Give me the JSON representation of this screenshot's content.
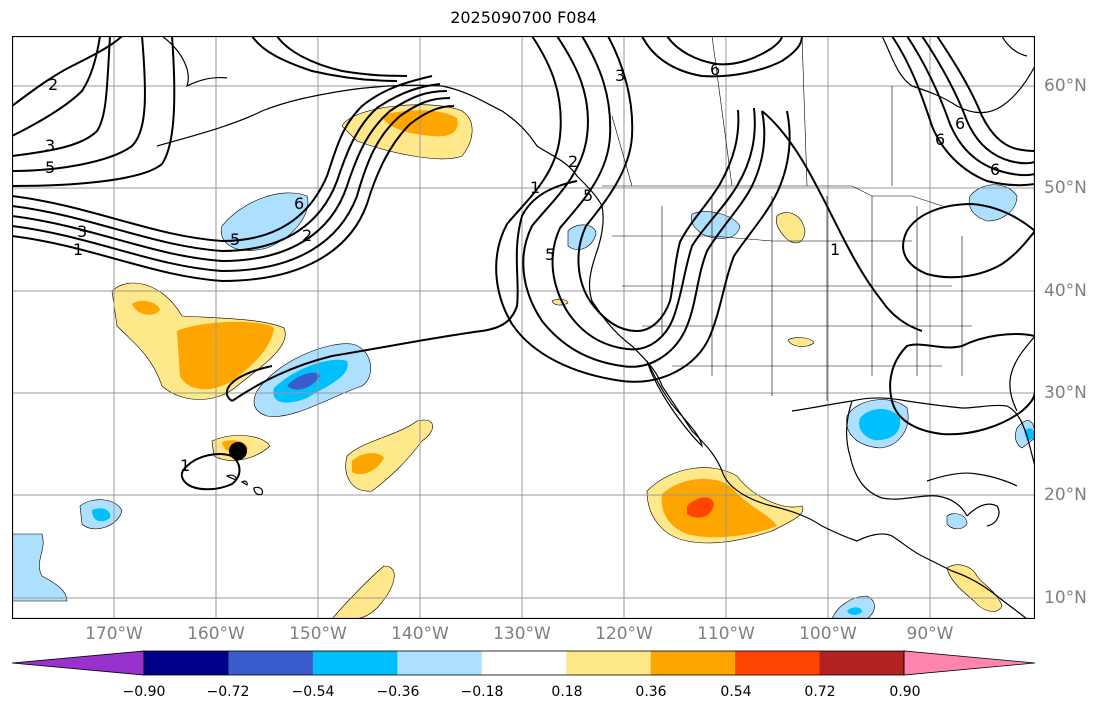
{
  "title": "2025090700 F084",
  "lon_labels": [
    "170°W",
    "160°W",
    "150°W",
    "140°W",
    "130°W",
    "120°W",
    "110°W",
    "100°W",
    "90°W"
  ],
  "lat_labels": [
    "60°N",
    "50°N",
    "40°N",
    "30°N",
    "20°N",
    "10°N"
  ],
  "colorbar": {
    "ticks": [
      "−0.90",
      "−0.72",
      "−0.54",
      "−0.36",
      "−0.18",
      "0.18",
      "0.36",
      "0.54",
      "0.72",
      "0.90"
    ],
    "colors": [
      "#9932cc",
      "#00008b",
      "#3a5ccc",
      "#00bfff",
      "#addfff",
      "#ffffff",
      "#ffe88a",
      "#ffa500",
      "#ff4500",
      "#b22222",
      "#ff85b0"
    ]
  },
  "contour_labels": [
    "2",
    "3",
    "5",
    "6",
    "5",
    "3",
    "1",
    "2",
    "6",
    "5",
    "2",
    "5",
    "1",
    "3",
    "6",
    "6",
    "6",
    "1",
    "1"
  ],
  "marker": {
    "name": "black-dot",
    "lon": -158,
    "lat": 24
  }
}
